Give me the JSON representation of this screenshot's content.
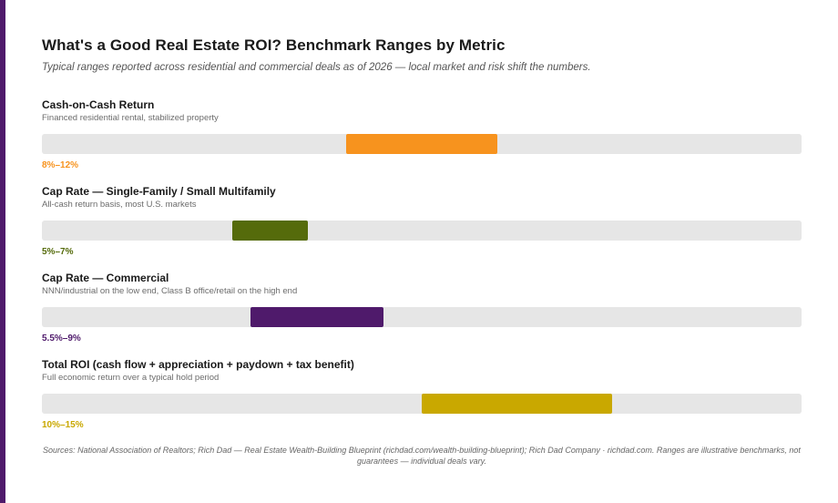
{
  "title": "What's a Good Real Estate ROI? Benchmark Ranges by Metric",
  "subtitle": "Typical ranges reported across residential and commercial deals as of 2026 — local market and risk shift the numbers.",
  "footnote": "Sources: National Association of Realtors; Rich Dad — Real Estate Wealth-Building Blueprint (richdad.com/wealth-building-blueprint); Rich Dad Company · richdad.com. Ranges are illustrative benchmarks, not guarantees — individual deals vary.",
  "colors": {
    "accent_bar": "#4f1a6b",
    "track": "#e6e6e6"
  },
  "chart_data": {
    "type": "bar",
    "orientation": "horizontal-range",
    "xlim": [
      0,
      20
    ],
    "unit": "%",
    "grid": false,
    "legend": "none",
    "rows": [
      {
        "name": "Cash-on-Cash Return",
        "note": "Financed residential rental, stabilized property",
        "low": 8,
        "high": 12,
        "label": "8%–12%",
        "color": "#f7931e"
      },
      {
        "name": "Cap Rate — Single-Family / Small Multifamily",
        "note": "All-cash return basis, most U.S. markets",
        "low": 5,
        "high": 7,
        "label": "5%–7%",
        "color": "#556b0b"
      },
      {
        "name": "Cap Rate — Commercial",
        "note": "NNN/industrial on the low end, Class B office/retail on the high end",
        "low": 5.5,
        "high": 9,
        "label": "5.5%–9%",
        "color": "#4f1a6b"
      },
      {
        "name": "Total ROI (cash flow + appreciation + paydown + tax benefit)",
        "note": "Full economic return over a typical hold period",
        "low": 10,
        "high": 15,
        "label": "10%–15%",
        "color": "#c9a800"
      }
    ]
  }
}
